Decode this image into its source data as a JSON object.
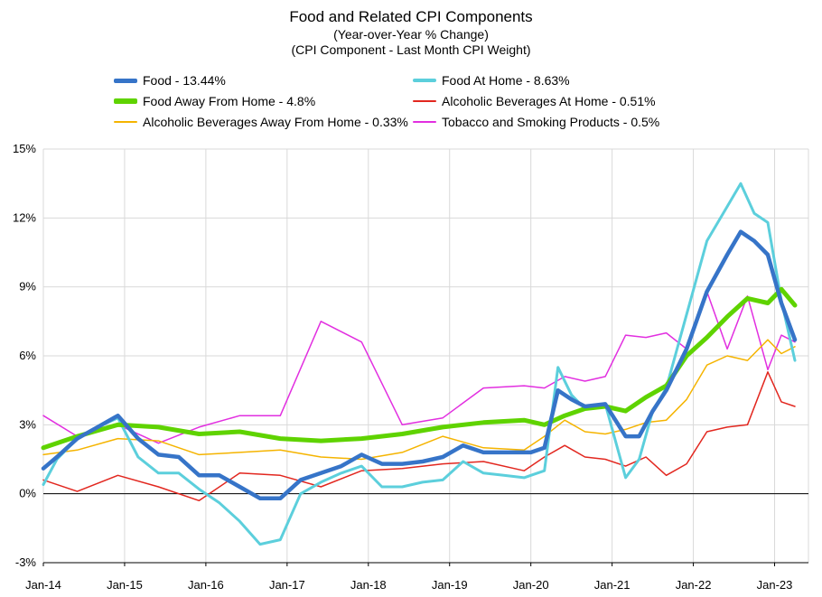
{
  "chart_data": {
    "type": "line",
    "title": "Food and Related CPI Components",
    "subtitle": "(Year-over-Year % Change)",
    "subtitle2": "(CPI Component - Last Month CPI Weight)",
    "xlabel": "",
    "ylabel": "",
    "ylim": [
      -3,
      15
    ],
    "yticks": [
      -3,
      0,
      3,
      6,
      9,
      12,
      15
    ],
    "ytick_labels": [
      "-3%",
      "0%",
      "3%",
      "6%",
      "9%",
      "12%",
      "15%"
    ],
    "xlim": [
      "2014-01",
      "2023-06"
    ],
    "xtick_labels": [
      "Jan-14",
      "Jan-15",
      "Jan-16",
      "Jan-17",
      "Jan-18",
      "Jan-19",
      "Jan-20",
      "Jan-21",
      "Jan-22",
      "Jan-23"
    ],
    "grid": true,
    "legend_position": "top",
    "series": [
      {
        "name": "Food - 13.44%",
        "color": "#3674C8",
        "width": 4.5,
        "x": [
          "2014-01",
          "2014-03",
          "2014-06",
          "2014-09",
          "2014-12",
          "2015-03",
          "2015-06",
          "2015-09",
          "2015-12",
          "2016-03",
          "2016-06",
          "2016-09",
          "2016-12",
          "2017-03",
          "2017-06",
          "2017-09",
          "2017-12",
          "2018-03",
          "2018-06",
          "2018-09",
          "2018-12",
          "2019-03",
          "2019-06",
          "2019-09",
          "2019-12",
          "2020-01",
          "2020-03",
          "2020-05",
          "2020-07",
          "2020-09",
          "2020-12",
          "2021-03",
          "2021-05",
          "2021-07",
          "2021-09",
          "2021-12",
          "2022-03",
          "2022-06",
          "2022-08",
          "2022-10",
          "2022-12",
          "2023-02",
          "2023-04"
        ],
        "values": [
          1.1,
          1.6,
          2.4,
          2.9,
          3.4,
          2.4,
          1.7,
          1.6,
          0.8,
          0.8,
          0.3,
          -0.2,
          -0.2,
          0.6,
          0.9,
          1.2,
          1.7,
          1.3,
          1.3,
          1.4,
          1.6,
          2.1,
          1.8,
          1.8,
          1.8,
          1.8,
          2.0,
          4.5,
          4.1,
          3.8,
          3.9,
          2.5,
          2.5,
          3.6,
          4.5,
          6.3,
          8.8,
          10.4,
          11.4,
          11.0,
          10.4,
          8.3,
          6.7
        ]
      },
      {
        "name": "Food At Home - 8.63%",
        "color": "#5CCFDC",
        "width": 3,
        "x": [
          "2014-01",
          "2014-03",
          "2014-06",
          "2014-09",
          "2014-12",
          "2015-03",
          "2015-06",
          "2015-09",
          "2015-12",
          "2016-03",
          "2016-06",
          "2016-09",
          "2016-12",
          "2017-03",
          "2017-06",
          "2017-09",
          "2017-12",
          "2018-03",
          "2018-06",
          "2018-09",
          "2018-12",
          "2019-03",
          "2019-06",
          "2019-09",
          "2019-12",
          "2020-01",
          "2020-03",
          "2020-05",
          "2020-07",
          "2020-09",
          "2020-12",
          "2021-03",
          "2021-05",
          "2021-07",
          "2021-09",
          "2021-12",
          "2022-03",
          "2022-06",
          "2022-08",
          "2022-10",
          "2022-12",
          "2023-02",
          "2023-04"
        ],
        "values": [
          0.4,
          1.5,
          2.4,
          2.9,
          3.3,
          1.6,
          0.9,
          0.9,
          0.2,
          -0.4,
          -1.2,
          -2.2,
          -2.0,
          0.0,
          0.5,
          0.9,
          1.2,
          0.3,
          0.3,
          0.5,
          0.6,
          1.4,
          0.9,
          0.8,
          0.7,
          0.8,
          1.0,
          5.5,
          4.3,
          3.7,
          3.9,
          0.7,
          1.5,
          3.6,
          4.6,
          7.8,
          11.0,
          12.5,
          13.5,
          12.2,
          11.8,
          8.4,
          5.8
        ]
      },
      {
        "name": "Food Away From Home - 4.8%",
        "color": "#5FD300",
        "width": 5,
        "x": [
          "2014-01",
          "2014-06",
          "2014-12",
          "2015-06",
          "2015-12",
          "2016-06",
          "2016-12",
          "2017-06",
          "2017-12",
          "2018-06",
          "2018-12",
          "2019-06",
          "2019-12",
          "2020-03",
          "2020-06",
          "2020-09",
          "2020-12",
          "2021-03",
          "2021-06",
          "2021-09",
          "2021-12",
          "2022-03",
          "2022-06",
          "2022-09",
          "2022-12",
          "2023-02",
          "2023-04"
        ],
        "values": [
          2.0,
          2.5,
          3.0,
          2.9,
          2.6,
          2.7,
          2.4,
          2.3,
          2.4,
          2.6,
          2.9,
          3.1,
          3.2,
          3.0,
          3.4,
          3.7,
          3.8,
          3.6,
          4.2,
          4.7,
          6.0,
          6.8,
          7.7,
          8.5,
          8.3,
          8.9,
          8.2
        ]
      },
      {
        "name": "Alcoholic Beverages At Home - 0.51%",
        "color": "#E2271F",
        "width": 1.5,
        "x": [
          "2014-01",
          "2014-06",
          "2014-12",
          "2015-06",
          "2015-12",
          "2016-06",
          "2016-12",
          "2017-06",
          "2017-12",
          "2018-06",
          "2018-12",
          "2019-06",
          "2019-12",
          "2020-03",
          "2020-06",
          "2020-09",
          "2020-12",
          "2021-03",
          "2021-06",
          "2021-09",
          "2021-12",
          "2022-03",
          "2022-06",
          "2022-09",
          "2022-12",
          "2023-02",
          "2023-04"
        ],
        "values": [
          0.6,
          0.1,
          0.8,
          0.3,
          -0.3,
          0.9,
          0.8,
          0.3,
          1.0,
          1.1,
          1.3,
          1.4,
          1.0,
          1.6,
          2.1,
          1.6,
          1.5,
          1.2,
          1.6,
          0.8,
          1.3,
          2.7,
          2.9,
          3.0,
          5.3,
          4.0,
          3.8
        ]
      },
      {
        "name": "Alcoholic Beverages Away From Home - 0.33%",
        "color": "#F5B400",
        "width": 1.5,
        "x": [
          "2014-01",
          "2014-06",
          "2014-12",
          "2015-06",
          "2015-12",
          "2016-06",
          "2016-12",
          "2017-06",
          "2017-12",
          "2018-06",
          "2018-12",
          "2019-06",
          "2019-12",
          "2020-03",
          "2020-06",
          "2020-09",
          "2020-12",
          "2021-03",
          "2021-06",
          "2021-09",
          "2021-12",
          "2022-03",
          "2022-06",
          "2022-09",
          "2022-12",
          "2023-02",
          "2023-04"
        ],
        "values": [
          1.7,
          1.9,
          2.4,
          2.3,
          1.7,
          1.8,
          1.9,
          1.6,
          1.5,
          1.8,
          2.5,
          2.0,
          1.9,
          2.5,
          3.2,
          2.7,
          2.6,
          2.8,
          3.1,
          3.2,
          4.1,
          5.6,
          6.0,
          5.8,
          6.7,
          6.1,
          6.4
        ]
      },
      {
        "name": "Tobacco and Smoking Products - 0.5%",
        "color": "#E22FE0",
        "width": 1.5,
        "x": [
          "2014-01",
          "2014-06",
          "2014-12",
          "2015-06",
          "2015-12",
          "2016-06",
          "2016-12",
          "2017-06",
          "2017-12",
          "2018-06",
          "2018-12",
          "2019-06",
          "2019-12",
          "2020-03",
          "2020-06",
          "2020-09",
          "2020-12",
          "2021-03",
          "2021-06",
          "2021-09",
          "2021-12",
          "2022-03",
          "2022-06",
          "2022-09",
          "2022-12",
          "2023-02",
          "2023-04"
        ],
        "values": [
          3.4,
          2.5,
          3.0,
          2.2,
          2.9,
          3.4,
          3.4,
          7.5,
          6.6,
          3.0,
          3.3,
          4.6,
          4.7,
          4.6,
          5.1,
          4.9,
          5.1,
          6.9,
          6.8,
          7.0,
          6.3,
          8.8,
          6.3,
          8.6,
          5.4,
          6.9,
          6.6
        ]
      }
    ]
  }
}
